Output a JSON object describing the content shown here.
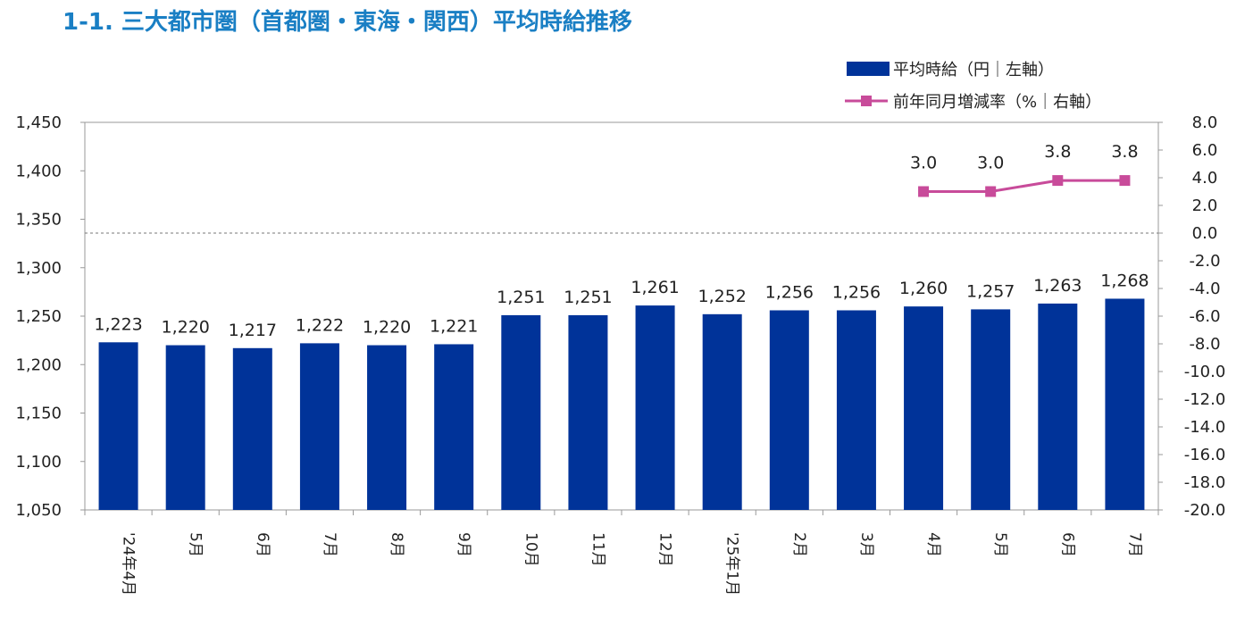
{
  "title": "1-1. 三大都市圏（首都圏・東海・関西）平均時給推移",
  "colors": {
    "bar": "#003399",
    "line": "#c84b9a",
    "title": "#1a7fc4"
  },
  "legend": {
    "bar_label": "平均時給（円｜左軸）",
    "line_label": "前年同月増減率（%｜右軸）"
  },
  "chart_data": {
    "type": "bar+line",
    "categories": [
      "'24年4月",
      "5月",
      "6月",
      "7月",
      "8月",
      "9月",
      "10月",
      "11月",
      "12月",
      "'25年1月",
      "2月",
      "3月",
      "4月",
      "5月",
      "6月",
      "7月"
    ],
    "series": [
      {
        "name": "平均時給（円｜左軸）",
        "type": "bar",
        "axis": "left",
        "values": [
          1223,
          1220,
          1217,
          1222,
          1220,
          1221,
          1251,
          1251,
          1261,
          1252,
          1256,
          1256,
          1260,
          1257,
          1263,
          1268
        ],
        "labels": [
          "1,223",
          "1,220",
          "1,217",
          "1,222",
          "1,220",
          "1,221",
          "1,251",
          "1,251",
          "1,261",
          "1,252",
          "1,256",
          "1,256",
          "1,260",
          "1,257",
          "1,263",
          "1,268"
        ]
      },
      {
        "name": "前年同月増減率（%｜右軸）",
        "type": "line",
        "axis": "right",
        "values": [
          null,
          null,
          null,
          null,
          null,
          null,
          null,
          null,
          null,
          null,
          null,
          null,
          3.0,
          3.0,
          3.8,
          3.8
        ],
        "labels": [
          "",
          "",
          "",
          "",
          "",
          "",
          "",
          "",
          "",
          "",
          "",
          "",
          "3.0",
          "3.0",
          "3.8",
          "3.8"
        ]
      }
    ],
    "left_axis": {
      "ylim": [
        1050,
        1450
      ],
      "ticks": [
        "1,050",
        "1,100",
        "1,150",
        "1,200",
        "1,250",
        "1,300",
        "1,350",
        "1,400",
        "1,450"
      ]
    },
    "right_axis": {
      "ylim": [
        -20,
        8
      ],
      "ticks": [
        "-20.0",
        "-18.0",
        "-16.0",
        "-14.0",
        "-12.0",
        "-10.0",
        "-8.0",
        "-6.0",
        "-4.0",
        "-2.0",
        "0.0",
        "2.0",
        "4.0",
        "6.0",
        "8.0"
      ]
    },
    "zero_reference_line": "dashed at 0.0 on right axis",
    "legend_position": "top-right",
    "grid": false
  }
}
